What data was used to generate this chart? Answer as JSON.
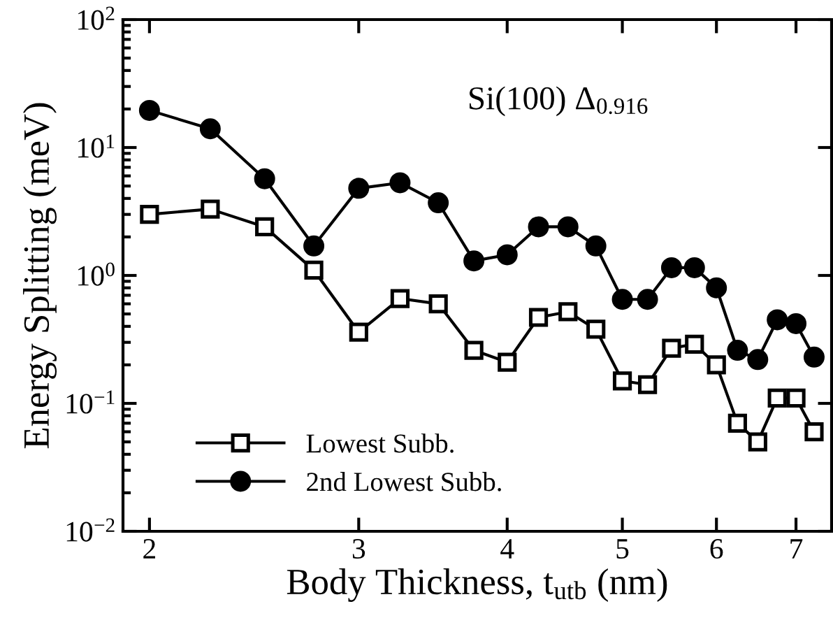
{
  "chart_data": {
    "type": "line",
    "xlabel": "Body Thickness, t$_{utb}$ (nm)",
    "ylabel": "Energy Splitting (meV)",
    "annotations": [
      "Si(100) Δ$_{0.916}$"
    ],
    "x": [
      2,
      2.25,
      2.5,
      2.75,
      3,
      3.25,
      3.5,
      3.75,
      4,
      4.25,
      4.5,
      4.75,
      5,
      5.25,
      5.5,
      5.75,
      6,
      6.25,
      6.5,
      6.75,
      7,
      7.25
    ],
    "series": [
      {
        "name": "Lowest Subb.",
        "color": "#000000",
        "marker": "square",
        "values": [
          3.0,
          3.3,
          2.4,
          1.1,
          0.36,
          0.66,
          0.6,
          0.26,
          0.21,
          0.47,
          0.52,
          0.38,
          0.15,
          0.14,
          0.27,
          0.29,
          0.2,
          0.07,
          0.05,
          0.11,
          0.11,
          0.06
        ]
      },
      {
        "name": "2nd Lowest Subb.",
        "color": "#000000",
        "marker": "circle",
        "values": [
          19.5,
          14,
          5.7,
          1.7,
          4.8,
          5.3,
          3.7,
          1.3,
          1.45,
          2.4,
          2.4,
          1.7,
          0.65,
          0.65,
          1.15,
          1.15,
          0.8,
          0.26,
          0.22,
          0.45,
          0.42,
          0.23
        ]
      }
    ],
    "log": "xy",
    "xlim": [
      1.9,
      7.5
    ],
    "xticks": [
      2,
      3,
      4,
      5,
      6,
      7
    ],
    "ylim": [
      0.01,
      100
    ],
    "yticks": [
      {
        "value": 0.01,
        "label": "10$^{−2}$"
      },
      {
        "value": 0.1,
        "label": "10$^{−1}$"
      },
      {
        "value": 1,
        "label": "10$^{0}$"
      },
      {
        "value": 10,
        "label": "10$^{1}$"
      },
      {
        "value": 100,
        "label": "10$^{2}$"
      }
    ],
    "grid": false,
    "legend": "bottom left",
    "line_style": "solid"
  }
}
